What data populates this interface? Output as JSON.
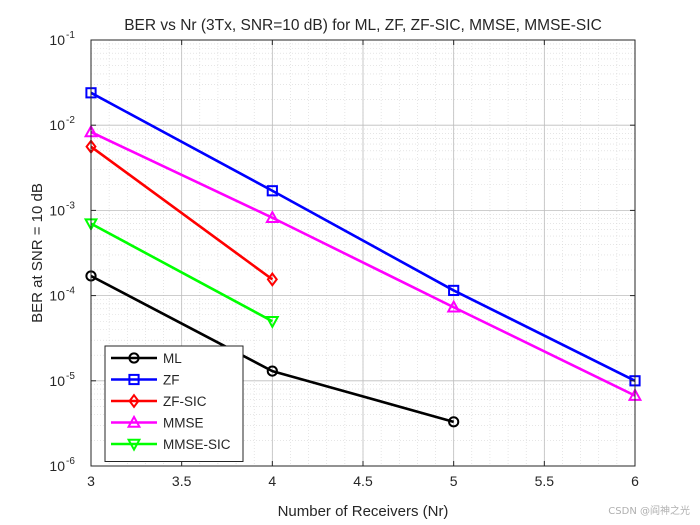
{
  "chart_data": {
    "type": "line",
    "title": "BER vs Nr (3Tx, SNR=10 dB) for ML, ZF, ZF-SIC, MMSE, MMSE-SIC",
    "xlabel": "Number of Receivers (Nr)",
    "ylabel": "BER at SNR = 10 dB",
    "xlim": [
      3,
      6
    ],
    "ylim": [
      1e-06,
      0.1
    ],
    "yscale": "log",
    "grid": true,
    "minor_grid": true,
    "legend_position": "bottom-left",
    "x_ticks": [
      "3",
      "3.5",
      "4",
      "4.5",
      "5",
      "5.5",
      "6"
    ],
    "y_ticks": [
      {
        "base": "10",
        "exp": "-6"
      },
      {
        "base": "10",
        "exp": "-5"
      },
      {
        "base": "10",
        "exp": "-4"
      },
      {
        "base": "10",
        "exp": "-3"
      },
      {
        "base": "10",
        "exp": "-2"
      },
      {
        "base": "10",
        "exp": "-1"
      }
    ],
    "series": [
      {
        "name": "ML",
        "color": "#000000",
        "marker": "circle",
        "x": [
          3,
          4,
          5
        ],
        "y": [
          0.00017,
          1.3e-05,
          3.3e-06
        ]
      },
      {
        "name": "ZF",
        "color": "#0000ff",
        "marker": "square",
        "x": [
          3,
          4,
          5,
          6
        ],
        "y": [
          0.024,
          0.0017,
          0.000115,
          1e-05
        ]
      },
      {
        "name": "ZF-SIC",
        "color": "#ff0000",
        "marker": "diamond",
        "x": [
          3,
          4
        ],
        "y": [
          0.0056,
          0.000155
        ]
      },
      {
        "name": "MMSE",
        "color": "#ff00ff",
        "marker": "triangle-up",
        "x": [
          3,
          4,
          5,
          6
        ],
        "y": [
          0.0083,
          0.00082,
          7.3e-05,
          6.7e-06
        ]
      },
      {
        "name": "MMSE-SIC",
        "color": "#00ff00",
        "marker": "triangle-down",
        "x": [
          3,
          4
        ],
        "y": [
          0.0007,
          5e-05
        ]
      }
    ]
  },
  "watermark": "CSDN @阎神之光"
}
